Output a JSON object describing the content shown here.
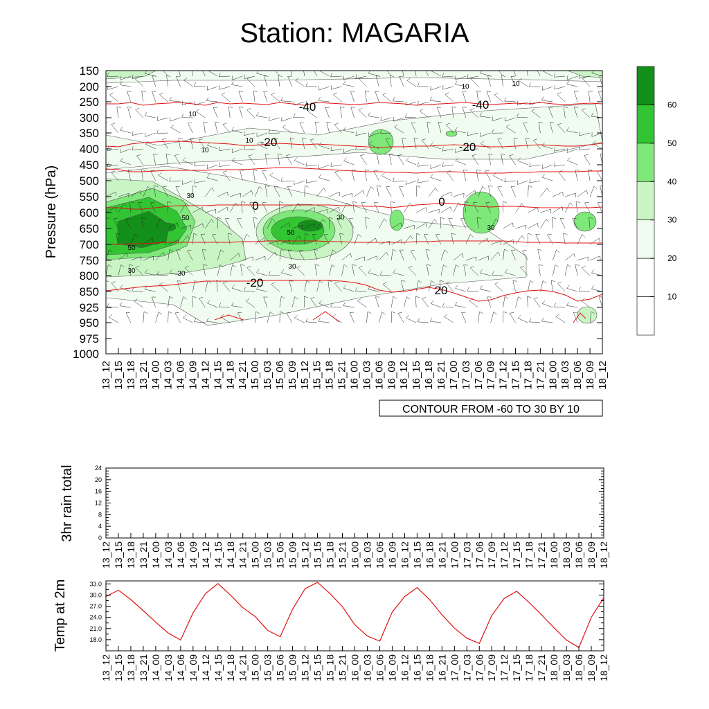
{
  "title": "Station: MAGARIA",
  "time_labels": [
    "13_12",
    "13_15",
    "13_18",
    "13_21",
    "14_00",
    "14_03",
    "14_06",
    "14_09",
    "14_12",
    "14_15",
    "14_18",
    "14_21",
    "15_00",
    "15_03",
    "15_06",
    "15_09",
    "15_12",
    "15_15",
    "15_18",
    "15_21",
    "16_00",
    "16_03",
    "16_06",
    "16_09",
    "16_12",
    "16_15",
    "16_18",
    "16_21",
    "17_00",
    "17_03",
    "17_06",
    "17_09",
    "17_12",
    "17_15",
    "17_18",
    "17_21",
    "18_00",
    "18_03",
    "18_06",
    "18_09",
    "18_12"
  ],
  "chart_data": [
    {
      "type": "heatmap",
      "ylabel": "Pressure (hPa)",
      "pressure_levels": [
        150,
        200,
        250,
        300,
        350,
        400,
        450,
        500,
        550,
        600,
        650,
        700,
        750,
        800,
        850,
        925,
        950,
        975,
        1000
      ],
      "fill_variable": {
        "legend_ticks": [
          "60",
          "50",
          "40",
          "30",
          "20",
          "10"
        ],
        "colors": [
          "#ffffff",
          "#f0fcef",
          "#c9f5c5",
          "#7fe87a",
          "#33c433",
          "#13901a"
        ]
      },
      "temperature_contours": {
        "color": "#e01010",
        "labels": [
          "-40",
          "-40",
          "-20",
          "-20",
          "0",
          "0",
          "-20",
          "20",
          "20"
        ]
      },
      "humidity_contour_labels": [
        "10",
        "10",
        "10",
        "10",
        "10",
        "30",
        "30",
        "30",
        "30",
        "30",
        "30",
        "50",
        "50",
        "50"
      ],
      "footer_box": "CONTOUR FROM -60 TO 30 BY 10"
    },
    {
      "type": "bar",
      "ylabel": "3hr rain total",
      "ylim": [
        0,
        24
      ],
      "yticks": [
        "0",
        "4",
        "8",
        "12",
        "16",
        "20",
        "24"
      ],
      "values": [
        0,
        0,
        0,
        0,
        0,
        0,
        0,
        0,
        0,
        0,
        0,
        0,
        0,
        0,
        0,
        0,
        0,
        0,
        0,
        0,
        0,
        0,
        0,
        0,
        0,
        0,
        0,
        0,
        0,
        0,
        0,
        0,
        0,
        0,
        0,
        0,
        0,
        0,
        0,
        0,
        0
      ]
    },
    {
      "type": "line",
      "ylabel": "Temp at 2m",
      "ylim": [
        15.0,
        33.8
      ],
      "yticks": [
        "18.0",
        "21.0",
        "24.0",
        "27.0",
        "30.0",
        "33.0"
      ],
      "color": "#e01010",
      "values": [
        29.6,
        31.3,
        28.8,
        25.8,
        22.7,
        19.8,
        17.9,
        25.2,
        30.4,
        33.1,
        30.0,
        26.6,
        24.2,
        20.5,
        18.8,
        26.2,
        31.7,
        33.4,
        30.4,
        26.9,
        22.0,
        19.0,
        17.6,
        25.4,
        29.6,
        32.0,
        28.8,
        24.7,
        21.1,
        18.4,
        17.0,
        24.5,
        29.1,
        31.0,
        28.0,
        24.7,
        21.2,
        17.9,
        15.9,
        24.0,
        29.3
      ]
    }
  ]
}
